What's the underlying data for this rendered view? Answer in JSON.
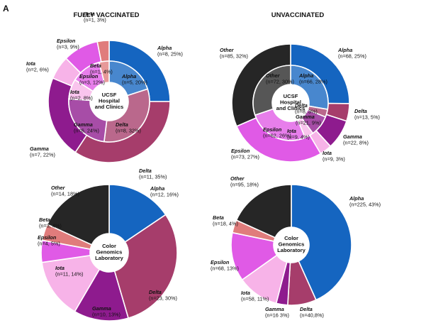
{
  "panel_letter": "A",
  "column_titles": [
    "FULLY VACCINATED",
    "UNVACCINATED"
  ],
  "colors": {
    "Alpha": "#1565c0",
    "Delta": "#a63d6b",
    "Gamma": "#8e1b8e",
    "Iota": "#f7b3e8",
    "Epsilon": "#e05ae6",
    "Beta": "#e07c7c",
    "Other": "#262626"
  },
  "chart_data": [
    {
      "type": "pie",
      "title": "FULLY VACCINATED",
      "center_label": [
        "UCSF",
        "Hospital",
        "and Clinics"
      ],
      "outer": [
        {
          "name": "Alpha",
          "n": 8,
          "pct": 25,
          "label": "(n=8, 25%)"
        },
        {
          "name": "Delta",
          "n": 11,
          "pct": 35,
          "label": "(n=11, 35%)"
        },
        {
          "name": "Gamma",
          "n": 7,
          "pct": 22,
          "label": "(n=7, 22%)"
        },
        {
          "name": "Iota",
          "n": 2,
          "pct": 6,
          "label": "(n=2, 6%)"
        },
        {
          "name": "Epsilon",
          "n": 3,
          "pct": 9,
          "label": "(n=3, 9%)"
        },
        {
          "name": "Beta",
          "n": 1,
          "pct": 3,
          "label": "(n=1, 3%)"
        }
      ],
      "inner": [
        {
          "name": "Alpha",
          "n": 5,
          "pct": 20,
          "label": "(n=5, 20%)"
        },
        {
          "name": "Delta",
          "n": 8,
          "pct": 32,
          "label": "(n=8, 32%)"
        },
        {
          "name": "Gamma",
          "n": 6,
          "pct": 24,
          "label": "(n=6, 24%)"
        },
        {
          "name": "Iota",
          "n": 2,
          "pct": 8,
          "label": "(n=2, 8%)"
        },
        {
          "name": "Epsilon",
          "n": 3,
          "pct": 12,
          "label": "(n=3, 12%)"
        },
        {
          "name": "Beta",
          "n": 1,
          "pct": 4,
          "label": "(n=1, 4%)"
        }
      ]
    },
    {
      "type": "pie",
      "title": "UNVACCINATED",
      "center_label": [
        "UCSF",
        "Hospital",
        "and Clinics"
      ],
      "outer": [
        {
          "name": "Alpha",
          "n": 68,
          "pct": 25,
          "label": "(n=68, 25%)"
        },
        {
          "name": "Delta",
          "n": 13,
          "pct": 5,
          "label": "(n=13, 5%)"
        },
        {
          "name": "Gamma",
          "n": 22,
          "pct": 8,
          "label": "(n=22, 8%)"
        },
        {
          "name": "Iota",
          "n": 9,
          "pct": 3,
          "label": "(n=9, 3%)"
        },
        {
          "name": "Epsilon",
          "n": 73,
          "pct": 27,
          "label": "(n=73, 27%)"
        },
        {
          "name": "Other",
          "n": 85,
          "pct": 32,
          "label": "(n=85, 32%)"
        }
      ],
      "inner": [
        {
          "name": "Alpha",
          "n": 66,
          "pct": 28,
          "label": "(n=66, 28%)"
        },
        {
          "name": "Delta",
          "n": 8,
          "pct": 3,
          "label": "(n=8, 3%)"
        },
        {
          "name": "Gamma",
          "n": 21,
          "pct": 9,
          "label": "(n=21, 9%)"
        },
        {
          "name": "Iota",
          "n": 9,
          "pct": 4,
          "label": "(n=9, 4%)"
        },
        {
          "name": "Epsilon",
          "n": 62,
          "pct": 26,
          "label": "(n=62, 26%)"
        },
        {
          "name": "Other",
          "n": 72,
          "pct": 30,
          "label": "(n=72, 30%)"
        }
      ]
    },
    {
      "type": "pie",
      "title": "",
      "center_label": [
        "Color",
        "Genomics",
        "Laboratory"
      ],
      "outer": [
        {
          "name": "Alpha",
          "n": 12,
          "pct": 16,
          "label": "(n=12, 16%)"
        },
        {
          "name": "Delta",
          "n": 23,
          "pct": 30,
          "label": "(n=23, 30%)"
        },
        {
          "name": "Gamma",
          "n": 10,
          "pct": 13,
          "label": "(n=10, 13%)"
        },
        {
          "name": "Iota",
          "n": 11,
          "pct": 14,
          "label": "(n=11, 14%)"
        },
        {
          "name": "Epsilon",
          "n": 4,
          "pct": 5,
          "label": "(n=4, 5%)"
        },
        {
          "name": "Beta",
          "n": 3,
          "pct": 4,
          "label": "(n=3, 4%)"
        },
        {
          "name": "Other",
          "n": 14,
          "pct": 18,
          "label": "(n=14, 18%)"
        }
      ]
    },
    {
      "type": "pie",
      "title": "",
      "center_label": [
        "Color",
        "Genomics",
        "Laboratory"
      ],
      "outer": [
        {
          "name": "Alpha",
          "n": 225,
          "pct": 43,
          "label": "(n=225, 43%)"
        },
        {
          "name": "Delta",
          "n": 40,
          "pct": 8,
          "label": "(n=40,8%)"
        },
        {
          "name": "Gamma",
          "n": 16,
          "pct": 3,
          "label": "(n=16 3%)"
        },
        {
          "name": "Iota",
          "n": 58,
          "pct": 11,
          "label": "(n=58, 11%)"
        },
        {
          "name": "Epsilon",
          "n": 68,
          "pct": 13,
          "label": "(n=68, 13%)"
        },
        {
          "name": "Beta",
          "n": 18,
          "pct": 4,
          "label": "(n=18, 4%)"
        },
        {
          "name": "Other",
          "n": 95,
          "pct": 18,
          "label": "(n=95, 18%)"
        }
      ]
    }
  ]
}
